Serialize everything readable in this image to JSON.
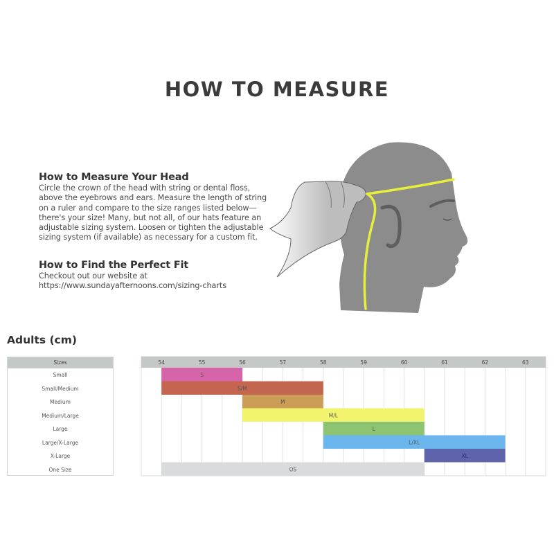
{
  "title": "HOW TO MEASURE",
  "sections": [
    {
      "heading": "How to Measure Your Head",
      "lines": [
        "Circle the crown of the head with string or dental floss,",
        "above the eyebrows and ears. Measure the length of string",
        "on a ruler and compare to the size ranges listed below—",
        "there's your size! Many, but not all, of our hats feature an",
        "adjustable sizing system. Loosen or tighten the adjustable",
        "sizing system (if available) as necessary for a custom fit."
      ]
    },
    {
      "heading": "How to Find the Perfect Fit",
      "lines": [
        "Checkout out our website at",
        "https://www.sundayafternoons.com/sizing-charts"
      ]
    }
  ],
  "illustration": {
    "head_color": "#8c8c8c",
    "string_color": "#e6f03c",
    "hand_color": "#bdbdbd"
  },
  "chart_data": {
    "type": "bar",
    "orientation": "horizontal-range",
    "title": "Adults (cm)",
    "row_header": "Sizes",
    "xlim": [
      53.5,
      63.5
    ],
    "x_ticks": [
      54,
      55,
      56,
      57,
      58,
      59,
      60,
      61,
      62,
      63
    ],
    "grid": true,
    "rows": [
      {
        "name": "Small",
        "label": "S",
        "start": 54,
        "end": 56,
        "color": "#d664a8"
      },
      {
        "name": "Small/Medium",
        "label": "S/M",
        "start": 54,
        "end": 58,
        "color": "#c4654f"
      },
      {
        "name": "Medium",
        "label": "M",
        "start": 56,
        "end": 58,
        "color": "#cc9d56"
      },
      {
        "name": "Medium/Large",
        "label": "M/L",
        "start": 56,
        "end": 60.5,
        "color": "#f1f46c"
      },
      {
        "name": "Large",
        "label": "L",
        "start": 58,
        "end": 60.5,
        "color": "#8dc472"
      },
      {
        "name": "Large/X-Large",
        "label": "L/XL",
        "start": 58,
        "end": 62.5,
        "color": "#6cb6ee"
      },
      {
        "name": "X-Large",
        "label": "XL",
        "start": 60.5,
        "end": 62.5,
        "color": "#5e63ab"
      },
      {
        "name": "One Size",
        "label": "OS",
        "start": 54,
        "end": 60.5,
        "color": "#d9dbdc"
      }
    ]
  }
}
